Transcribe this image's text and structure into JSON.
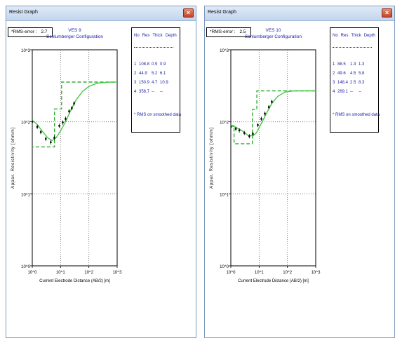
{
  "windows": [
    {
      "title": "Resist Graph",
      "close_symbol": "×",
      "rms_label": "*RMS-error :",
      "rms_value": "2.7",
      "plot_title_1": "VES 9",
      "plot_title_2": "Schlumberger Configuration",
      "ylabel": "Appar. Resistivity [ohmm]",
      "xlabel": "Current Electrode Distance (AB/2) [m]",
      "xticks": [
        "10^0",
        "10^1",
        "10^2",
        "10^3"
      ],
      "yticks": [
        "10^3",
        "10^2",
        "10^1",
        "10^0"
      ],
      "table_headers": [
        "No",
        "Res",
        "Thick",
        "Depth"
      ],
      "layers": [
        {
          "no": "1",
          "res": "108.8",
          "thick": "0.9",
          "depth": "0.9"
        },
        {
          "no": "2",
          "res": "44.9",
          "thick": "5.2",
          "depth": "6.1"
        },
        {
          "no": "3",
          "res": "150.9",
          "thick": "4.7",
          "depth": "10.9"
        },
        {
          "no": "4",
          "res": "356.7",
          "thick": "--",
          "depth": "--"
        }
      ],
      "note": "* RMS on smoothed data",
      "chart_data": {
        "type": "line",
        "x_scale": "log",
        "y_scale": "log",
        "xlim": [
          1,
          1000
        ],
        "ylim": [
          1,
          1000
        ],
        "grid": true,
        "observed": [
          {
            "x": 1.0,
            "y": 100
          },
          {
            "x": 1.5,
            "y": 85
          },
          {
            "x": 2.0,
            "y": 72
          },
          {
            "x": 3.0,
            "y": 58
          },
          {
            "x": 4.5,
            "y": 52
          },
          {
            "x": 6.0,
            "y": 60
          },
          {
            "x": 9.0,
            "y": 88
          },
          {
            "x": 12,
            "y": 98
          },
          {
            "x": 15,
            "y": 110
          },
          {
            "x": 20,
            "y": 140
          },
          {
            "x": 25,
            "y": 155
          },
          {
            "x": 30,
            "y": 180
          }
        ],
        "calculated": [
          {
            "x": 1.0,
            "y": 105
          },
          {
            "x": 1.5,
            "y": 92
          },
          {
            "x": 2.2,
            "y": 75
          },
          {
            "x": 3.5,
            "y": 60
          },
          {
            "x": 5.0,
            "y": 55
          },
          {
            "x": 7.0,
            "y": 60
          },
          {
            "x": 10,
            "y": 75
          },
          {
            "x": 15,
            "y": 100
          },
          {
            "x": 22,
            "y": 140
          },
          {
            "x": 35,
            "y": 200
          },
          {
            "x": 60,
            "y": 265
          },
          {
            "x": 100,
            "y": 310
          },
          {
            "x": 200,
            "y": 345
          },
          {
            "x": 500,
            "y": 355
          },
          {
            "x": 1000,
            "y": 357
          }
        ],
        "model": [
          {
            "x": 1.0,
            "y": 108.8
          },
          {
            "x": 0.9,
            "y": 108.8
          },
          {
            "x": 0.9,
            "y": 44.9
          },
          {
            "x": 6.1,
            "y": 44.9
          },
          {
            "x": 6.1,
            "y": 150.9
          },
          {
            "x": 10.9,
            "y": 150.9
          },
          {
            "x": 10.9,
            "y": 356.7
          },
          {
            "x": 1000,
            "y": 356.7
          }
        ]
      }
    },
    {
      "title": "Resist Graph",
      "close_symbol": "×",
      "rms_label": "*RMS-error :",
      "rms_value": "2.5",
      "plot_title_1": "VES 10",
      "plot_title_2": "Schlumberger Configuration",
      "ylabel": "Appar. Resistivity [ohmm]",
      "xlabel": "Current Electrode Distance (AB/2) [m]",
      "xticks": [
        "10^0",
        "10^1",
        "10^2",
        "10^3"
      ],
      "yticks": [
        "10^3",
        "10^2",
        "10^1",
        "10^0"
      ],
      "table_headers": [
        "No",
        "Res",
        "Thick",
        "Depth"
      ],
      "layers": [
        {
          "no": "1",
          "res": "88.5",
          "thick": "1.3",
          "depth": "1.3"
        },
        {
          "no": "2",
          "res": "49.6",
          "thick": "4.5",
          "depth": "5.8"
        },
        {
          "no": "3",
          "res": "148.4",
          "thick": "2.5",
          "depth": "8.3"
        },
        {
          "no": "4",
          "res": "269.1",
          "thick": "--",
          "depth": "--"
        }
      ],
      "note": "* RMS on smoothed data",
      "chart_data": {
        "type": "line",
        "x_scale": "log",
        "y_scale": "log",
        "xlim": [
          1,
          1000
        ],
        "ylim": [
          1,
          1000
        ],
        "grid": true,
        "observed": [
          {
            "x": 1.0,
            "y": 85
          },
          {
            "x": 1.5,
            "y": 80
          },
          {
            "x": 2.0,
            "y": 76
          },
          {
            "x": 3.0,
            "y": 70
          },
          {
            "x": 4.5,
            "y": 63
          },
          {
            "x": 6.0,
            "y": 68
          },
          {
            "x": 9.0,
            "y": 90
          },
          {
            "x": 12,
            "y": 110
          },
          {
            "x": 16,
            "y": 130
          },
          {
            "x": 22,
            "y": 160
          },
          {
            "x": 28,
            "y": 190
          }
        ],
        "calculated": [
          {
            "x": 1.0,
            "y": 88
          },
          {
            "x": 1.5,
            "y": 84
          },
          {
            "x": 2.5,
            "y": 75
          },
          {
            "x": 4.0,
            "y": 65
          },
          {
            "x": 6.0,
            "y": 64
          },
          {
            "x": 8.0,
            "y": 70
          },
          {
            "x": 12,
            "y": 95
          },
          {
            "x": 18,
            "y": 130
          },
          {
            "x": 28,
            "y": 180
          },
          {
            "x": 45,
            "y": 225
          },
          {
            "x": 80,
            "y": 258
          },
          {
            "x": 150,
            "y": 268
          },
          {
            "x": 300,
            "y": 269
          },
          {
            "x": 1000,
            "y": 269
          }
        ],
        "model": [
          {
            "x": 1.0,
            "y": 88.5
          },
          {
            "x": 1.3,
            "y": 88.5
          },
          {
            "x": 1.3,
            "y": 49.6
          },
          {
            "x": 5.8,
            "y": 49.6
          },
          {
            "x": 5.8,
            "y": 148.4
          },
          {
            "x": 8.3,
            "y": 148.4
          },
          {
            "x": 8.3,
            "y": 269.1
          },
          {
            "x": 1000,
            "y": 269.1
          }
        ]
      }
    }
  ]
}
